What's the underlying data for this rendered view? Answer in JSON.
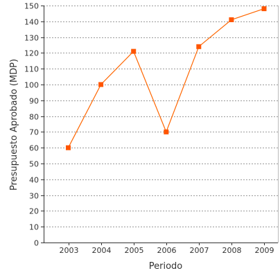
{
  "chart_data": {
    "type": "line",
    "title": "",
    "xlabel": "Periodo",
    "ylabel": "Presupuesto Aprobado (MDP)",
    "categories": [
      "2003",
      "2004",
      "2005",
      "2006",
      "2007",
      "2008",
      "2009"
    ],
    "series": [
      {
        "values": [
          60,
          100,
          121,
          70,
          124,
          141,
          148
        ]
      }
    ],
    "ylim": [
      0,
      150
    ],
    "yticks": [
      0,
      10,
      20,
      30,
      40,
      50,
      60,
      70,
      80,
      90,
      100,
      110,
      120,
      130,
      140,
      150
    ],
    "grid": true,
    "colors": {
      "series": "#ff6600",
      "marker": "#ff5500",
      "grid": "#999999",
      "axis": "#333333"
    }
  }
}
